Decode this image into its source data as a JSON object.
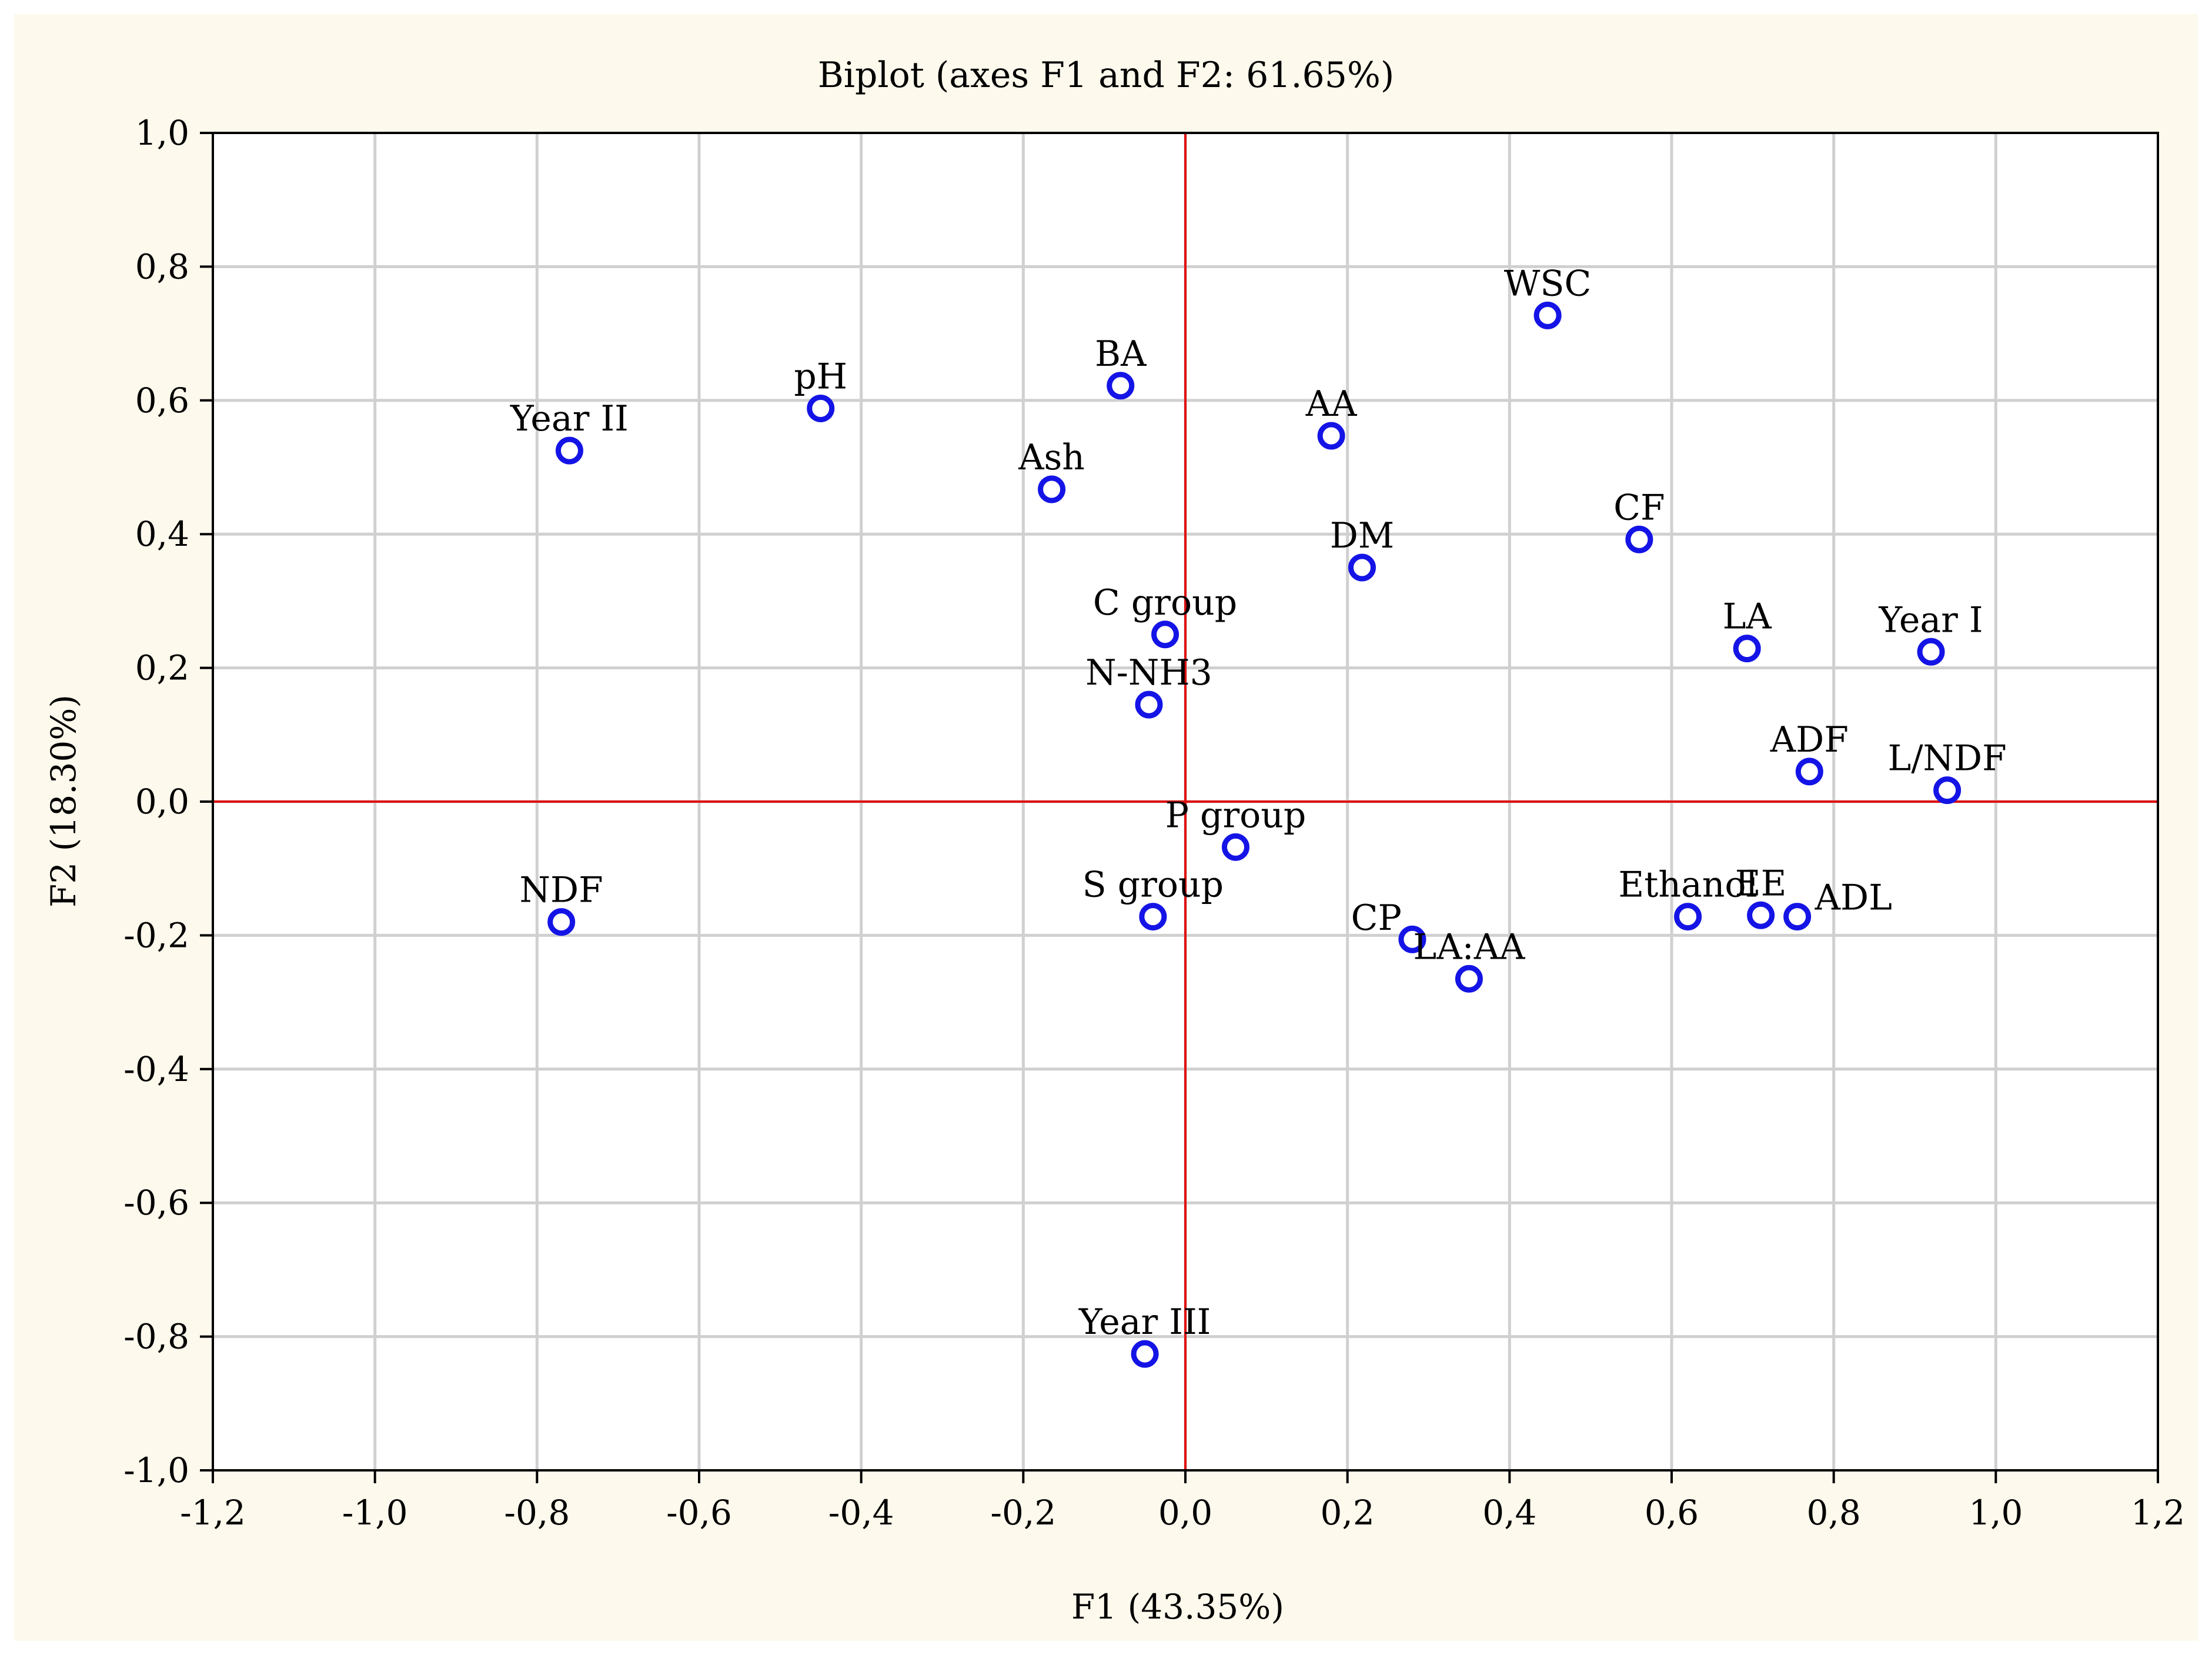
{
  "colors": {
    "background": "#fdf9ec",
    "marker": "#1414e6",
    "reference_lines": "#e01010",
    "grid": "#d0d0d0"
  },
  "chart_data": {
    "type": "scatter",
    "title": "Biplot (axes F1 and F2: 61.65%)",
    "xlabel": "F1 (43.35%)",
    "ylabel": "F2 (18.30%)",
    "xlim": [
      -1.2,
      1.2
    ],
    "ylim": [
      -1.0,
      1.0
    ],
    "x_ticks": [
      -1.2,
      -1.0,
      -0.8,
      -0.6,
      -0.4,
      -0.2,
      0.0,
      0.2,
      0.4,
      0.6,
      0.8,
      1.0,
      1.2
    ],
    "x_tick_labels": [
      "-1,2",
      "-1,0",
      "-0,8",
      "-0,6",
      "-0,4",
      "-0,2",
      "0,0",
      "0,2",
      "0,4",
      "0,6",
      "0,8",
      "1,0",
      "1,2"
    ],
    "y_ticks": [
      1.0,
      0.8,
      0.6,
      0.4,
      0.2,
      0.0,
      -0.2,
      -0.4,
      -0.6,
      -0.8,
      -1.0
    ],
    "y_tick_labels": [
      "1,0",
      "0,8",
      "0,6",
      "0,4",
      "0,2",
      "0,0",
      "-0,2",
      "-0,4",
      "-0,6",
      "-0,8",
      "-1,0"
    ],
    "grid": true,
    "reference_lines": {
      "x": 0,
      "y": 0
    },
    "points": [
      {
        "label": "Year II",
        "x": -0.76,
        "y": 0.525,
        "label_pos": "above"
      },
      {
        "label": "pH",
        "x": -0.45,
        "y": 0.588,
        "label_pos": "above"
      },
      {
        "label": "BA",
        "x": -0.08,
        "y": 0.622,
        "label_pos": "above"
      },
      {
        "label": "Ash",
        "x": -0.165,
        "y": 0.467,
        "label_pos": "above"
      },
      {
        "label": "AA",
        "x": 0.18,
        "y": 0.547,
        "label_pos": "above"
      },
      {
        "label": "WSC",
        "x": 0.447,
        "y": 0.727,
        "label_pos": "above"
      },
      {
        "label": "CF",
        "x": 0.56,
        "y": 0.392,
        "label_pos": "above"
      },
      {
        "label": "DM",
        "x": 0.218,
        "y": 0.35,
        "label_pos": "above"
      },
      {
        "label": "C group",
        "x": -0.025,
        "y": 0.25,
        "label_pos": "above"
      },
      {
        "label": "N-NH3",
        "x": -0.045,
        "y": 0.145,
        "label_pos": "above"
      },
      {
        "label": "LA",
        "x": 0.693,
        "y": 0.229,
        "label_pos": "above"
      },
      {
        "label": "Year I",
        "x": 0.92,
        "y": 0.224,
        "label_pos": "above"
      },
      {
        "label": "ADF",
        "x": 0.77,
        "y": 0.045,
        "label_pos": "above"
      },
      {
        "label": "L/NDF",
        "x": 0.94,
        "y": 0.017,
        "label_pos": "above"
      },
      {
        "label": "P group",
        "x": 0.062,
        "y": -0.068,
        "label_pos": "above"
      },
      {
        "label": "S group",
        "x": -0.04,
        "y": -0.172,
        "label_pos": "above"
      },
      {
        "label": "NDF",
        "x": -0.77,
        "y": -0.18,
        "label_pos": "above"
      },
      {
        "label": "CP",
        "x": 0.28,
        "y": -0.206,
        "label_pos": "left"
      },
      {
        "label": "LA:AA",
        "x": 0.35,
        "y": -0.265,
        "label_pos": "above"
      },
      {
        "label": "Ethanol",
        "x": 0.62,
        "y": -0.172,
        "label_pos": "above"
      },
      {
        "label": "EE",
        "x": 0.71,
        "y": -0.17,
        "label_pos": "above"
      },
      {
        "label": "ADL",
        "x": 0.755,
        "y": -0.172,
        "label_pos": "right"
      },
      {
        "label": "Year III",
        "x": -0.05,
        "y": -0.826,
        "label_pos": "above"
      }
    ]
  }
}
